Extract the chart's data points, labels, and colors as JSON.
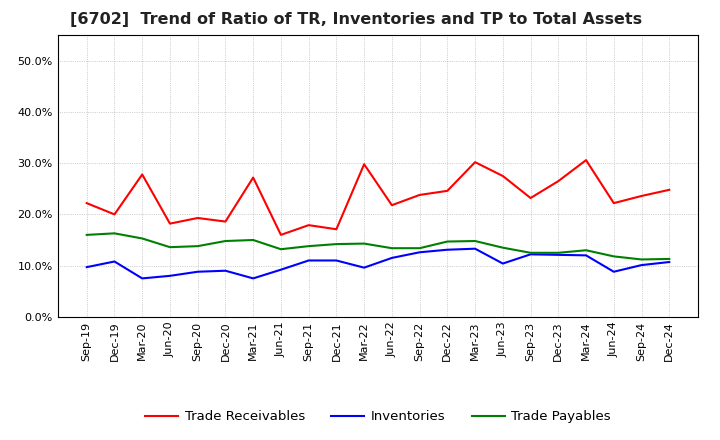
{
  "title": "[6702]  Trend of Ratio of TR, Inventories and TP to Total Assets",
  "x_labels": [
    "Sep-19",
    "Dec-19",
    "Mar-20",
    "Jun-20",
    "Sep-20",
    "Dec-20",
    "Mar-21",
    "Jun-21",
    "Sep-21",
    "Dec-21",
    "Mar-22",
    "Jun-22",
    "Sep-22",
    "Dec-22",
    "Mar-23",
    "Jun-23",
    "Sep-23",
    "Dec-23",
    "Mar-24",
    "Jun-24",
    "Sep-24",
    "Dec-24"
  ],
  "trade_receivables": [
    0.222,
    0.2,
    0.278,
    0.182,
    0.193,
    0.186,
    0.272,
    0.16,
    0.179,
    0.171,
    0.298,
    0.218,
    0.238,
    0.246,
    0.302,
    0.275,
    0.232,
    0.265,
    0.306,
    0.222,
    0.236,
    0.248
  ],
  "inventories": [
    0.097,
    0.108,
    0.075,
    0.08,
    0.088,
    0.09,
    0.075,
    0.092,
    0.11,
    0.11,
    0.096,
    0.115,
    0.126,
    0.131,
    0.133,
    0.104,
    0.122,
    0.121,
    0.12,
    0.088,
    0.101,
    0.107
  ],
  "trade_payables": [
    0.16,
    0.163,
    0.153,
    0.136,
    0.138,
    0.148,
    0.15,
    0.132,
    0.138,
    0.142,
    0.143,
    0.134,
    0.134,
    0.147,
    0.148,
    0.135,
    0.125,
    0.125,
    0.13,
    0.118,
    0.112,
    0.113
  ],
  "tr_color": "#FF0000",
  "inv_color": "#0000FF",
  "tp_color": "#008000",
  "background_color": "#FFFFFF",
  "plot_bg_color": "#FFFFFF",
  "grid_color": "#AAAAAA",
  "ylim": [
    0.0,
    0.55
  ],
  "yticks": [
    0.0,
    0.1,
    0.2,
    0.3,
    0.4,
    0.5
  ],
  "title_fontsize": 11.5,
  "legend_fontsize": 9.5,
  "tick_fontsize": 8.0
}
